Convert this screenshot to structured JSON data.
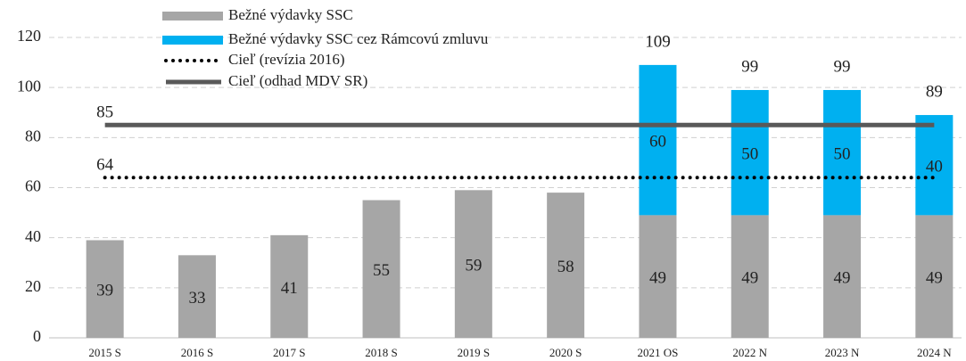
{
  "chart_data": {
    "type": "bar",
    "categories": [
      "2015 S",
      "2016 S",
      "2017 S",
      "2018 S",
      "2019 S",
      "2020 S",
      "2021 OS",
      "2022 N",
      "2023 N",
      "2024 N"
    ],
    "series": [
      {
        "name": "Bežné výdavky SSC",
        "type": "bar",
        "color": "#a6a6a6",
        "values": [
          39,
          33,
          41,
          55,
          59,
          58,
          49,
          49,
          49,
          49
        ]
      },
      {
        "name": "Bežné výdavky SSC cez Rámcovú zmluvu",
        "type": "bar",
        "color": "#00b0f0",
        "values": [
          null,
          null,
          null,
          null,
          null,
          null,
          60,
          50,
          50,
          40
        ]
      },
      {
        "name": "Cieľ (revízia  2016)",
        "type": "line",
        "style": "dotted",
        "color": "#000000",
        "values": [
          64,
          64,
          64,
          64,
          64,
          64,
          64,
          64,
          64,
          64
        ]
      },
      {
        "name": "Cieľ (odhad MDV SR)",
        "type": "line",
        "style": "solid",
        "color": "#595959",
        "values": [
          85,
          85,
          85,
          85,
          85,
          85,
          85,
          85,
          85,
          85
        ]
      }
    ],
    "totals": [
      null,
      null,
      null,
      null,
      null,
      null,
      109,
      99,
      99,
      89
    ],
    "stacked": true,
    "ylim": [
      0,
      120
    ],
    "yticks": [
      0,
      20,
      40,
      60,
      80,
      100,
      120
    ],
    "grid": true,
    "legend": "top-left"
  }
}
